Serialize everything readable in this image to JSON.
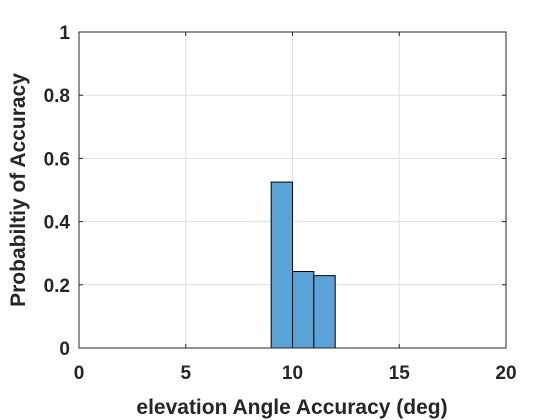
{
  "chart_data": {
    "type": "bar",
    "bins": [
      {
        "x0": 9,
        "x1": 10,
        "value": 0.525
      },
      {
        "x0": 10,
        "x1": 11,
        "value": 0.242
      },
      {
        "x0": 11,
        "x1": 12,
        "value": 0.229
      }
    ],
    "xlabel": "elevation Angle Accuracy (deg)",
    "ylabel": "Probabiltiy of Accuracy",
    "xlim": [
      0,
      20
    ],
    "ylim": [
      0,
      1
    ],
    "xticks": [
      0,
      5,
      10,
      15,
      20
    ],
    "xtick_labels": [
      "0",
      "5",
      "10",
      "15",
      "20"
    ],
    "yticks": [
      0,
      0.2,
      0.4,
      0.6,
      0.8,
      1
    ],
    "ytick_labels": [
      "0",
      "0.2",
      "0.4",
      "0.6",
      "0.8",
      "1"
    ],
    "grid": true,
    "bar_color": "#5aa3d6",
    "bar_edge_color": "#000000"
  }
}
